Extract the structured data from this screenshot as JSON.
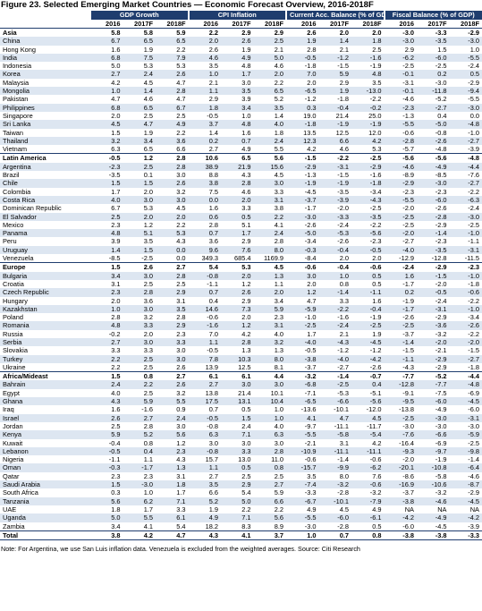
{
  "header": {
    "title": "Figure 23. Selected Emerging Market Countries — Economic Forecast Overview, 2016-2018F"
  },
  "table": {
    "groups": [
      "GDP Growth",
      "CPI Inflation",
      "Current Acc. Balance (% of GDP)",
      "Fiscal Balance (% of GDP)"
    ],
    "years": [
      "2016",
      "2017F",
      "2018F"
    ],
    "rows": [
      {
        "label": "Asia",
        "region": true,
        "values": [
          "5.8",
          "5.8",
          "5.9",
          "2.2",
          "2.9",
          "2.9",
          "2.6",
          "2.0",
          "2.0",
          "-3.0",
          "-3.3",
          "-2.9"
        ]
      },
      {
        "label": "China",
        "values": [
          "6.7",
          "6.5",
          "6.5",
          "2.0",
          "2.6",
          "2.5",
          "1.9",
          "1.4",
          "1.8",
          "-3.0",
          "-3.5",
          "-3.0"
        ]
      },
      {
        "label": "Hong Kong",
        "values": [
          "1.6",
          "1.9",
          "2.2",
          "2.6",
          "1.9",
          "2.1",
          "2.8",
          "2.1",
          "2.5",
          "2.9",
          "1.5",
          "1.0"
        ]
      },
      {
        "label": "India",
        "values": [
          "6.8",
          "7.5",
          "7.9",
          "4.6",
          "4.9",
          "5.0",
          "-0.5",
          "-1.2",
          "-1.6",
          "-6.2",
          "-6.0",
          "-5.5"
        ]
      },
      {
        "label": "Indonesia",
        "values": [
          "5.0",
          "5.3",
          "5.3",
          "3.5",
          "4.8",
          "4.6",
          "-1.8",
          "-1.5",
          "-1.9",
          "-2.5",
          "-2.5",
          "-2.4"
        ]
      },
      {
        "label": "Korea",
        "values": [
          "2.7",
          "2.4",
          "2.6",
          "1.0",
          "1.7",
          "2.0",
          "7.0",
          "5.9",
          "4.8",
          "-0.1",
          "0.2",
          "0.5"
        ]
      },
      {
        "label": "Malaysia",
        "values": [
          "4.2",
          "4.5",
          "4.7",
          "2.1",
          "3.0",
          "2.2",
          "2.0",
          "2.9",
          "3.5",
          "-3.1",
          "-3.0",
          "-2.9"
        ]
      },
      {
        "label": "Mongolia",
        "values": [
          "1.0",
          "1.4",
          "2.8",
          "1.1",
          "3.5",
          "6.5",
          "-6.5",
          "1.9",
          "-13.0",
          "-0.1",
          "-11.8",
          "-9.4"
        ]
      },
      {
        "label": "Pakistan",
        "values": [
          "4.7",
          "4.6",
          "4.7",
          "2.9",
          "3.9",
          "5.2",
          "-1.2",
          "-1.8",
          "-2.2",
          "-4.6",
          "-5.2",
          "-5.5"
        ]
      },
      {
        "label": "Philippines",
        "values": [
          "6.8",
          "6.5",
          "6.7",
          "1.8",
          "3.4",
          "3.5",
          "0.3",
          "-0.4",
          "-0.2",
          "-2.3",
          "-2.7",
          "-3.0"
        ]
      },
      {
        "label": "Singapore",
        "values": [
          "2.0",
          "2.5",
          "2.5",
          "-0.5",
          "1.0",
          "1.4",
          "19.0",
          "21.4",
          "25.0",
          "-1.3",
          "0.4",
          "0.0"
        ]
      },
      {
        "label": "Sri Lanka",
        "values": [
          "4.5",
          "4.7",
          "4.9",
          "3.7",
          "4.8",
          "4.0",
          "-1.8",
          "-1.9",
          "-1.9",
          "-5.5",
          "-5.0",
          "-4.8"
        ]
      },
      {
        "label": "Taiwan",
        "values": [
          "1.5",
          "1.9",
          "2.2",
          "1.4",
          "1.6",
          "1.8",
          "13.5",
          "12.5",
          "12.0",
          "-0.6",
          "-0.8",
          "-1.0"
        ]
      },
      {
        "label": "Thailand",
        "values": [
          "3.2",
          "3.4",
          "3.6",
          "0.2",
          "0.7",
          "2.4",
          "12.3",
          "6.6",
          "4.2",
          "-2.8",
          "-2.6",
          "-2.7"
        ]
      },
      {
        "label": "Vietnam",
        "values": [
          "6.3",
          "6.5",
          "6.6",
          "2.7",
          "4.9",
          "5.5",
          "4.2",
          "4.6",
          "5.3",
          "-5.7",
          "-4.8",
          "-3.9"
        ]
      },
      {
        "label": "Latin America",
        "region": true,
        "values": [
          "-0.5",
          "1.2",
          "2.8",
          "10.6",
          "6.5",
          "5.6",
          "-1.5",
          "-2.2",
          "-2.5",
          "-5.6",
          "-5.6",
          "-4.8"
        ]
      },
      {
        "label": "Argentina",
        "values": [
          "-2.3",
          "2.5",
          "2.8",
          "38.9",
          "21.9",
          "15.6",
          "-2.9",
          "-3.1",
          "-2.9",
          "-4.6",
          "-4.9",
          "-4.4"
        ]
      },
      {
        "label": "Brazil",
        "values": [
          "-3.5",
          "0.1",
          "3.0",
          "8.8",
          "4.3",
          "4.5",
          "-1.3",
          "-1.5",
          "-1.6",
          "-8.9",
          "-8.5",
          "-7.6"
        ]
      },
      {
        "label": "Chile",
        "values": [
          "1.5",
          "1.5",
          "2.6",
          "3.8",
          "2.8",
          "3.0",
          "-1.9",
          "-1.9",
          "-1.8",
          "-2.9",
          "-3.0",
          "-2.7"
        ]
      },
      {
        "label": "Colombia",
        "values": [
          "1.7",
          "2.0",
          "3.2",
          "7.5",
          "4.6",
          "3.3",
          "-4.5",
          "-3.5",
          "-3.4",
          "-2.3",
          "-2.3",
          "-2.2"
        ]
      },
      {
        "label": "Costa Rica",
        "values": [
          "4.0",
          "3.0",
          "3.0",
          "0.0",
          "2.0",
          "3.1",
          "-3.7",
          "-3.9",
          "-4.3",
          "-5.5",
          "-6.0",
          "-6.3"
        ]
      },
      {
        "label": "Dominican Republic",
        "values": [
          "6.7",
          "5.3",
          "4.5",
          "1.6",
          "3.3",
          "3.8",
          "-1.7",
          "-2.0",
          "-2.5",
          "-2.0",
          "-2.6",
          "-2.4"
        ]
      },
      {
        "label": "El Salvador",
        "values": [
          "2.5",
          "2.0",
          "2.0",
          "0.6",
          "0.5",
          "2.2",
          "-3.0",
          "-3.3",
          "-3.5",
          "-2.5",
          "-2.8",
          "-3.0"
        ]
      },
      {
        "label": "Mexico",
        "values": [
          "2.3",
          "1.2",
          "2.2",
          "2.8",
          "5.1",
          "4.1",
          "-2.6",
          "-2.4",
          "-2.2",
          "-2.5",
          "-2.9",
          "-2.5"
        ]
      },
      {
        "label": "Panama",
        "values": [
          "4.8",
          "5.1",
          "5.3",
          "0.7",
          "1.7",
          "2.4",
          "-5.0",
          "-5.3",
          "-5.6",
          "-2.0",
          "-1.4",
          "-1.0"
        ]
      },
      {
        "label": "Peru",
        "values": [
          "3.9",
          "3.5",
          "4.3",
          "3.6",
          "2.9",
          "2.8",
          "-3.4",
          "-2.6",
          "-2.3",
          "-2.7",
          "-2.3",
          "-1.1"
        ]
      },
      {
        "label": "Uruguay",
        "values": [
          "1.4",
          "1.5",
          "0.0",
          "9.6",
          "7.6",
          "8.0",
          "-0.3",
          "-0.4",
          "-0.5",
          "-4.0",
          "-3.5",
          "-3.1"
        ]
      },
      {
        "label": "Venezuela",
        "values": [
          "-8.5",
          "-2.5",
          "0.0",
          "349.3",
          "685.4",
          "1169.9",
          "-8.4",
          "2.0",
          "2.0",
          "-12.9",
          "-12.8",
          "-11.5"
        ]
      },
      {
        "label": "Europe",
        "region": true,
        "values": [
          "1.5",
          "2.6",
          "2.7",
          "5.4",
          "5.3",
          "4.5",
          "-0.6",
          "-0.4",
          "-0.6",
          "-2.4",
          "-2.9",
          "-2.3"
        ]
      },
      {
        "label": "Bulgaria",
        "values": [
          "3.4",
          "3.0",
          "2.8",
          "-0.8",
          "2.0",
          "1.3",
          "3.0",
          "1.0",
          "0.5",
          "1.6",
          "-1.5",
          "-1.0"
        ]
      },
      {
        "label": "Croatia",
        "values": [
          "3.1",
          "2.5",
          "2.5",
          "-1.1",
          "1.2",
          "1.1",
          "2.0",
          "0.8",
          "0.5",
          "-1.7",
          "-2.0",
          "-1.8"
        ]
      },
      {
        "label": "Czech Republic",
        "values": [
          "2.3",
          "2.8",
          "2.9",
          "0.7",
          "2.6",
          "2.0",
          "1.2",
          "-1.4",
          "-1.1",
          "0.2",
          "-0.5",
          "-0.6"
        ]
      },
      {
        "label": "Hungary",
        "values": [
          "2.0",
          "3.6",
          "3.1",
          "0.4",
          "2.9",
          "3.4",
          "4.7",
          "3.3",
          "1.6",
          "-1.9",
          "-2.4",
          "-2.2"
        ]
      },
      {
        "label": "Kazakhstan",
        "values": [
          "1.0",
          "3.0",
          "3.5",
          "14.6",
          "7.3",
          "5.9",
          "-5.9",
          "-2.2",
          "-0.4",
          "-1.7",
          "-3.1",
          "-1.0"
        ]
      },
      {
        "label": "Poland",
        "values": [
          "2.8",
          "3.2",
          "2.8",
          "-0.6",
          "2.0",
          "2.3",
          "-1.0",
          "-1.6",
          "-1.9",
          "-2.6",
          "-2.9",
          "-3.4"
        ]
      },
      {
        "label": "Romania",
        "values": [
          "4.8",
          "3.3",
          "2.9",
          "-1.6",
          "1.2",
          "3.1",
          "-2.5",
          "-2.4",
          "-2.5",
          "-2.5",
          "-3.6",
          "-2.6"
        ]
      },
      {
        "label": "Russia",
        "values": [
          "-0.2",
          "2.0",
          "2.3",
          "7.0",
          "4.2",
          "4.0",
          "1.7",
          "2.1",
          "1.9",
          "-3.7",
          "-3.2",
          "-2.2"
        ]
      },
      {
        "label": "Serbia",
        "values": [
          "2.7",
          "3.0",
          "3.3",
          "1.1",
          "2.8",
          "3.2",
          "-4.0",
          "-4.3",
          "-4.5",
          "-1.4",
          "-2.0",
          "-2.0"
        ]
      },
      {
        "label": "Slovakia",
        "values": [
          "3.3",
          "3.3",
          "3.0",
          "-0.5",
          "1.3",
          "1.3",
          "-0.5",
          "-1.2",
          "-1.2",
          "-1.5",
          "-2.1",
          "-1.5"
        ]
      },
      {
        "label": "Turkey",
        "values": [
          "2.2",
          "2.5",
          "3.0",
          "7.8",
          "10.3",
          "8.0",
          "-3.8",
          "-4.0",
          "-4.2",
          "-1.1",
          "-2.9",
          "-2.7"
        ]
      },
      {
        "label": "Ukraine",
        "values": [
          "2.2",
          "2.5",
          "2.6",
          "13.9",
          "12.5",
          "8.1",
          "-3.7",
          "-2.7",
          "-2.6",
          "-4.3",
          "-2.9",
          "-1.8"
        ]
      },
      {
        "label": "Africa/Mideast",
        "region": true,
        "values": [
          "1.5",
          "0.8",
          "2.7",
          "6.1",
          "6.1",
          "4.4",
          "-3.2",
          "-1.4",
          "-0.7",
          "-7.7",
          "-5.2",
          "-4.4"
        ]
      },
      {
        "label": "Bahrain",
        "values": [
          "2.4",
          "2.2",
          "2.6",
          "2.7",
          "3.0",
          "3.0",
          "-6.8",
          "-2.5",
          "0.4",
          "-12.8",
          "-7.7",
          "-4.8"
        ]
      },
      {
        "label": "Egypt",
        "values": [
          "4.0",
          "2.5",
          "3.2",
          "13.8",
          "21.4",
          "10.1",
          "-7.1",
          "-5.3",
          "-5.1",
          "-9.1",
          "-7.5",
          "-6.9"
        ]
      },
      {
        "label": "Ghana",
        "values": [
          "4.3",
          "5.9",
          "5.5",
          "17.5",
          "13.1",
          "10.4",
          "-6.5",
          "-6.6",
          "-5.6",
          "-9.5",
          "-6.0",
          "-4.5"
        ]
      },
      {
        "label": "Iraq",
        "values": [
          "1.6",
          "-1.6",
          "0.9",
          "0.7",
          "0.5",
          "1.0",
          "-13.6",
          "-10.1",
          "-12.0",
          "-13.8",
          "-4.9",
          "-6.0"
        ]
      },
      {
        "label": "Israel",
        "values": [
          "2.6",
          "2.7",
          "2.4",
          "-0.5",
          "1.5",
          "1.0",
          "4.1",
          "4.7",
          "4.5",
          "-2.5",
          "-3.0",
          "-3.1"
        ]
      },
      {
        "label": "Jordan",
        "values": [
          "2.5",
          "2.8",
          "3.0",
          "-0.8",
          "2.4",
          "4.0",
          "-9.7",
          "-11.1",
          "-11.7",
          "-3.0",
          "-3.0",
          "-3.0"
        ]
      },
      {
        "label": "Kenya",
        "values": [
          "5.9",
          "5.2",
          "5.6",
          "6.3",
          "7.1",
          "6.3",
          "-5.5",
          "-5.8",
          "-5.4",
          "-7.6",
          "-6.6",
          "-5.9"
        ]
      },
      {
        "label": "Kuwait",
        "values": [
          "-0.4",
          "0.8",
          "1.2",
          "3.0",
          "3.0",
          "3.0",
          "-2.1",
          "3.1",
          "4.2",
          "-16.4",
          "-6.9",
          "-2.5"
        ]
      },
      {
        "label": "Lebanon",
        "values": [
          "-0.5",
          "0.4",
          "2.3",
          "-0.8",
          "3.3",
          "2.8",
          "-10.9",
          "-11.1",
          "-11.1",
          "-9.3",
          "-9.7",
          "-9.8"
        ]
      },
      {
        "label": "Nigeria",
        "values": [
          "-1.1",
          "1.1",
          "4.3",
          "15.7",
          "13.0",
          "11.0",
          "-0.6",
          "-1.4",
          "-0.6",
          "-2.0",
          "-1.9",
          "-1.4"
        ]
      },
      {
        "label": "Oman",
        "values": [
          "-0.3",
          "-1.7",
          "1.3",
          "1.1",
          "0.5",
          "0.8",
          "-15.7",
          "-9.9",
          "-6.2",
          "-20.1",
          "-10.8",
          "-6.4"
        ]
      },
      {
        "label": "Qatar",
        "values": [
          "2.3",
          "2.3",
          "3.1",
          "2.7",
          "2.5",
          "2.5",
          "3.5",
          "8.0",
          "7.6",
          "-8.6",
          "-5.8",
          "-4.6"
        ]
      },
      {
        "label": "Saudi Arabia",
        "values": [
          "1.5",
          "-3.0",
          "1.8",
          "3.5",
          "2.9",
          "2.7",
          "-7.4",
          "-3.2",
          "-0.6",
          "-16.9",
          "-10.6",
          "-8.7"
        ]
      },
      {
        "label": "South Africa",
        "values": [
          "0.3",
          "1.0",
          "1.7",
          "6.6",
          "5.4",
          "5.9",
          "-3.3",
          "-2.8",
          "-3.2",
          "-3.7",
          "-3.2",
          "-2.9"
        ]
      },
      {
        "label": "Tanzania",
        "values": [
          "5.6",
          "6.2",
          "7.1",
          "5.2",
          "5.0",
          "6.6",
          "-6.7",
          "-10.1",
          "-7.9",
          "-3.8",
          "-4.6",
          "-4.5"
        ]
      },
      {
        "label": "UAE",
        "values": [
          "1.8",
          "1.7",
          "3.3",
          "1.9",
          "2.2",
          "2.2",
          "4.9",
          "4.5",
          "4.9",
          "NA",
          "NA",
          "NA"
        ]
      },
      {
        "label": "Uganda",
        "values": [
          "5.0",
          "5.5",
          "6.1",
          "4.9",
          "7.1",
          "5.6",
          "-5.5",
          "-6.0",
          "-6.1",
          "-4.2",
          "-4.9",
          "-4.2"
        ]
      },
      {
        "label": "Zambia",
        "values": [
          "3.4",
          "4.1",
          "5.4",
          "18.2",
          "8.3",
          "8.9",
          "-3.0",
          "-2.8",
          "0.5",
          "-6.0",
          "-4.5",
          "-3.9"
        ]
      },
      {
        "label": "Total",
        "region": true,
        "values": [
          "3.8",
          "4.2",
          "4.7",
          "4.3",
          "4.1",
          "3.7",
          "1.0",
          "0.7",
          "0.8",
          "-3.8",
          "-3.8",
          "-3.3"
        ]
      }
    ]
  },
  "footer": {
    "note": "Note: For Argentina, we use San Luis inflation data. Venezuela is excluded from the weighted averages. Source: Citi Research"
  }
}
